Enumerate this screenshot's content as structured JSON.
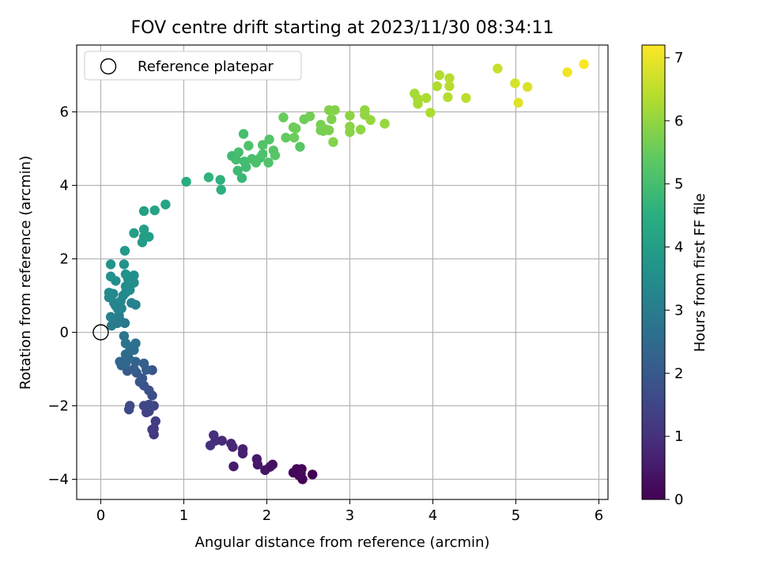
{
  "chart_data": {
    "type": "scatter",
    "title": "FOV centre drift starting at 2023/11/30 08:34:11",
    "xlabel": "Angular distance from reference (arcmin)",
    "ylabel": "Rotation from reference (arcmin)",
    "xlim": [
      -0.29,
      6.11
    ],
    "ylim": [
      -4.55,
      7.82
    ],
    "xticks": [
      0,
      1,
      2,
      3,
      4,
      5,
      6
    ],
    "xtick_labels": [
      "0",
      "1",
      "2",
      "3",
      "4",
      "5",
      "6"
    ],
    "yticks": [
      -4,
      -2,
      0,
      2,
      4,
      6
    ],
    "ytick_labels": [
      "−4",
      "−2",
      "0",
      "2",
      "4",
      "6"
    ],
    "grid": true,
    "legend": {
      "position": "top-left",
      "entries": [
        "Reference platepar"
      ]
    },
    "reference_point": {
      "x": 0,
      "y": 0
    },
    "colorbar": {
      "label": "Hours from first FF file",
      "range": [
        0,
        7.2
      ],
      "ticks": [
        0,
        1,
        2,
        3,
        4,
        5,
        6,
        7
      ],
      "tick_labels": [
        "0",
        "1",
        "2",
        "3",
        "4",
        "5",
        "6",
        "7"
      ],
      "colormap": "viridis"
    },
    "points": [
      [
        2.55,
        -3.87,
        0.0
      ],
      [
        2.43,
        -4.0,
        0.05
      ],
      [
        2.42,
        -3.72,
        0.08
      ],
      [
        2.36,
        -3.72,
        0.1
      ],
      [
        2.32,
        -3.82,
        0.12
      ],
      [
        2.39,
        -3.9,
        0.15
      ],
      [
        2.41,
        -3.84,
        0.18
      ],
      [
        2.07,
        -3.6,
        0.3
      ],
      [
        2.04,
        -3.66,
        0.35
      ],
      [
        1.98,
        -3.75,
        0.4
      ],
      [
        1.89,
        -3.6,
        0.45
      ],
      [
        1.88,
        -3.45,
        0.5
      ],
      [
        1.6,
        -3.65,
        0.55
      ],
      [
        1.71,
        -3.18,
        0.6
      ],
      [
        1.71,
        -3.3,
        0.65
      ],
      [
        1.59,
        -3.12,
        0.75
      ],
      [
        1.57,
        -3.03,
        0.8
      ],
      [
        1.46,
        -2.95,
        0.85
      ],
      [
        1.38,
        -2.95,
        0.9
      ],
      [
        1.36,
        -2.8,
        0.95
      ],
      [
        1.32,
        -3.08,
        1.0
      ],
      [
        0.64,
        -2.78,
        1.15
      ],
      [
        0.64,
        -2.62,
        1.2
      ],
      [
        0.62,
        -2.65,
        1.25
      ],
      [
        0.66,
        -2.42,
        1.3
      ],
      [
        0.55,
        -2.18,
        1.35
      ],
      [
        0.58,
        -2.15,
        1.4
      ],
      [
        0.64,
        -2.0,
        1.45
      ],
      [
        0.52,
        -2.0,
        1.5
      ],
      [
        0.58,
        -1.97,
        1.55
      ],
      [
        0.35,
        -2.0,
        1.6
      ],
      [
        0.34,
        -2.1,
        1.65
      ],
      [
        0.62,
        -1.72,
        1.7
      ],
      [
        0.58,
        -1.58,
        1.75
      ],
      [
        0.62,
        -1.03,
        1.8
      ],
      [
        0.52,
        -1.45,
        1.85
      ],
      [
        0.47,
        -1.35,
        1.9
      ],
      [
        0.5,
        -1.25,
        1.95
      ],
      [
        0.43,
        -1.1,
        2.0
      ],
      [
        0.32,
        -1.05,
        2.05
      ],
      [
        0.4,
        -1.0,
        2.1
      ],
      [
        0.55,
        -1.02,
        2.15
      ],
      [
        0.52,
        -0.85,
        2.2
      ],
      [
        0.42,
        -0.8,
        2.25
      ],
      [
        0.25,
        -0.9,
        2.3
      ],
      [
        0.3,
        -0.85,
        2.35
      ],
      [
        0.23,
        -0.8,
        2.4
      ],
      [
        0.34,
        -0.72,
        2.45
      ],
      [
        0.3,
        -0.6,
        2.5
      ],
      [
        0.35,
        -0.52,
        2.55
      ],
      [
        0.4,
        -0.48,
        2.6
      ],
      [
        0.35,
        -0.4,
        2.65
      ],
      [
        0.42,
        -0.3,
        2.7
      ],
      [
        0.3,
        -0.3,
        2.75
      ],
      [
        0.28,
        -0.1,
        2.8
      ],
      [
        0.29,
        0.25,
        2.85
      ],
      [
        0.24,
        0.3,
        2.9
      ],
      [
        0.2,
        0.25,
        2.95
      ],
      [
        0.13,
        0.18,
        3.0
      ],
      [
        0.22,
        0.45,
        3.05
      ],
      [
        0.12,
        0.42,
        3.1
      ],
      [
        0.37,
        0.8,
        3.15
      ],
      [
        0.42,
        0.75,
        3.18
      ],
      [
        0.21,
        0.62,
        3.2
      ],
      [
        0.25,
        0.65,
        3.23
      ],
      [
        0.18,
        0.72,
        3.25
      ],
      [
        0.16,
        0.8,
        3.28
      ],
      [
        0.24,
        0.85,
        3.3
      ],
      [
        0.1,
        0.95,
        3.33
      ],
      [
        0.15,
        1.05,
        3.35
      ],
      [
        0.27,
        1.0,
        3.38
      ],
      [
        0.3,
        1.08,
        3.4
      ],
      [
        0.1,
        1.08,
        3.43
      ],
      [
        0.35,
        1.15,
        3.45
      ],
      [
        0.3,
        1.25,
        3.48
      ],
      [
        0.4,
        1.35,
        3.5
      ],
      [
        0.18,
        1.4,
        3.53
      ],
      [
        0.33,
        1.45,
        3.55
      ],
      [
        0.4,
        1.55,
        3.58
      ],
      [
        0.12,
        1.52,
        3.6
      ],
      [
        0.3,
        1.58,
        3.63
      ],
      [
        0.28,
        1.85,
        3.65
      ],
      [
        0.12,
        1.85,
        3.7
      ],
      [
        0.29,
        2.22,
        3.85
      ],
      [
        0.5,
        2.45,
        3.9
      ],
      [
        0.52,
        2.6,
        3.95
      ],
      [
        0.4,
        2.7,
        4.0
      ],
      [
        0.58,
        2.6,
        4.02
      ],
      [
        0.52,
        2.8,
        4.05
      ],
      [
        0.52,
        3.3,
        4.1
      ],
      [
        0.65,
        3.32,
        4.15
      ],
      [
        0.78,
        3.48,
        4.2
      ],
      [
        1.03,
        4.1,
        4.45
      ],
      [
        1.45,
        3.88,
        4.55
      ],
      [
        1.44,
        4.15,
        4.6
      ],
      [
        1.3,
        4.22,
        4.65
      ],
      [
        1.7,
        4.2,
        4.8
      ],
      [
        1.65,
        4.4,
        4.85
      ],
      [
        1.58,
        4.8,
        4.9
      ],
      [
        1.75,
        4.5,
        4.92
      ],
      [
        1.73,
        4.65,
        4.95
      ],
      [
        1.63,
        4.7,
        4.98
      ],
      [
        1.66,
        4.9,
        5.0
      ],
      [
        1.72,
        5.4,
        5.02
      ],
      [
        1.82,
        4.72,
        5.05
      ],
      [
        1.92,
        4.75,
        5.08
      ],
      [
        1.87,
        4.62,
        5.1
      ],
      [
        1.95,
        4.85,
        5.12
      ],
      [
        2.02,
        4.62,
        5.15
      ],
      [
        1.78,
        5.08,
        5.18
      ],
      [
        1.95,
        5.1,
        5.2
      ],
      [
        2.03,
        5.25,
        5.22
      ],
      [
        2.08,
        4.95,
        5.25
      ],
      [
        2.1,
        4.82,
        5.28
      ],
      [
        2.4,
        5.05,
        5.3
      ],
      [
        2.23,
        5.3,
        5.45
      ],
      [
        2.2,
        5.85,
        5.5
      ],
      [
        2.33,
        5.3,
        5.53
      ],
      [
        2.32,
        5.58,
        5.55
      ],
      [
        2.35,
        5.55,
        5.58
      ],
      [
        2.45,
        5.8,
        5.6
      ],
      [
        2.52,
        5.88,
        5.63
      ],
      [
        2.65,
        5.5,
        5.65
      ],
      [
        2.68,
        5.48,
        5.68
      ],
      [
        2.65,
        5.65,
        5.7
      ],
      [
        2.72,
        5.52,
        5.73
      ],
      [
        2.75,
        5.5,
        5.75
      ],
      [
        2.78,
        5.8,
        5.78
      ],
      [
        2.75,
        6.05,
        5.8
      ],
      [
        2.8,
        5.18,
        5.82
      ],
      [
        2.82,
        6.05,
        5.85
      ],
      [
        3.0,
        5.45,
        5.88
      ],
      [
        3.0,
        5.6,
        5.9
      ],
      [
        3.0,
        5.9,
        5.93
      ],
      [
        3.13,
        5.52,
        5.95
      ],
      [
        3.18,
        5.92,
        5.98
      ],
      [
        3.18,
        6.05,
        6.0
      ],
      [
        3.25,
        5.78,
        6.03
      ],
      [
        3.42,
        5.68,
        6.05
      ],
      [
        3.78,
        6.5,
        6.2
      ],
      [
        3.82,
        6.35,
        6.22
      ],
      [
        3.82,
        6.22,
        6.25
      ],
      [
        3.92,
        6.38,
        6.28
      ],
      [
        3.97,
        5.98,
        6.3
      ],
      [
        4.05,
        6.7,
        6.33
      ],
      [
        4.08,
        7.0,
        6.35
      ],
      [
        4.18,
        6.4,
        6.38
      ],
      [
        4.2,
        6.92,
        6.4
      ],
      [
        4.2,
        6.7,
        6.42
      ],
      [
        4.4,
        6.38,
        6.45
      ],
      [
        4.78,
        7.18,
        6.6
      ],
      [
        4.99,
        6.78,
        6.75
      ],
      [
        5.03,
        6.25,
        6.85
      ],
      [
        5.14,
        6.68,
        6.8
      ],
      [
        5.62,
        7.08,
        7.05
      ],
      [
        5.82,
        7.3,
        7.15
      ]
    ]
  }
}
